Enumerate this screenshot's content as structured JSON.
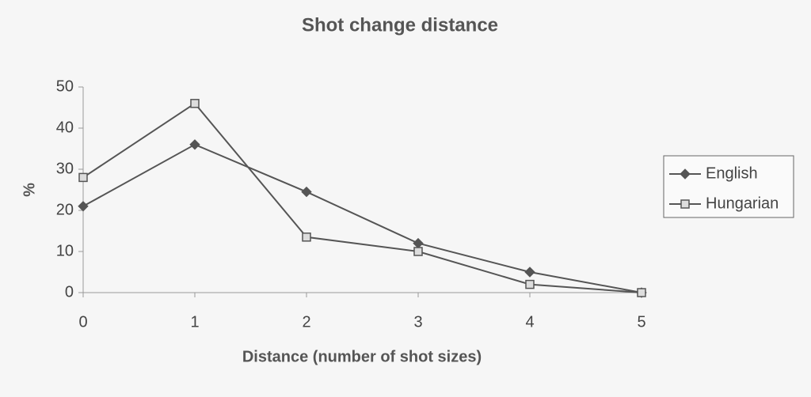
{
  "chart_data": {
    "type": "line",
    "title": "Shot change distance",
    "x_label": "Distance (number of shot sizes)",
    "y_label": "%",
    "x": [
      0,
      1,
      2,
      3,
      4,
      5
    ],
    "series": [
      {
        "name": "English",
        "color": "#555555",
        "marker": "diamond",
        "values": [
          21,
          36,
          24.5,
          12,
          5,
          0
        ]
      },
      {
        "name": "Hungarian",
        "color": "#555555",
        "marker": "square",
        "values": [
          28,
          46,
          13.5,
          10,
          2,
          0
        ]
      }
    ],
    "xlim": [
      0,
      5
    ],
    "xticks": [
      0,
      1,
      2,
      3,
      4,
      5
    ],
    "ylim": [
      0,
      50
    ],
    "yticks": [
      0,
      10,
      20,
      30,
      40,
      50
    ],
    "grid": false,
    "legend": "right"
  }
}
